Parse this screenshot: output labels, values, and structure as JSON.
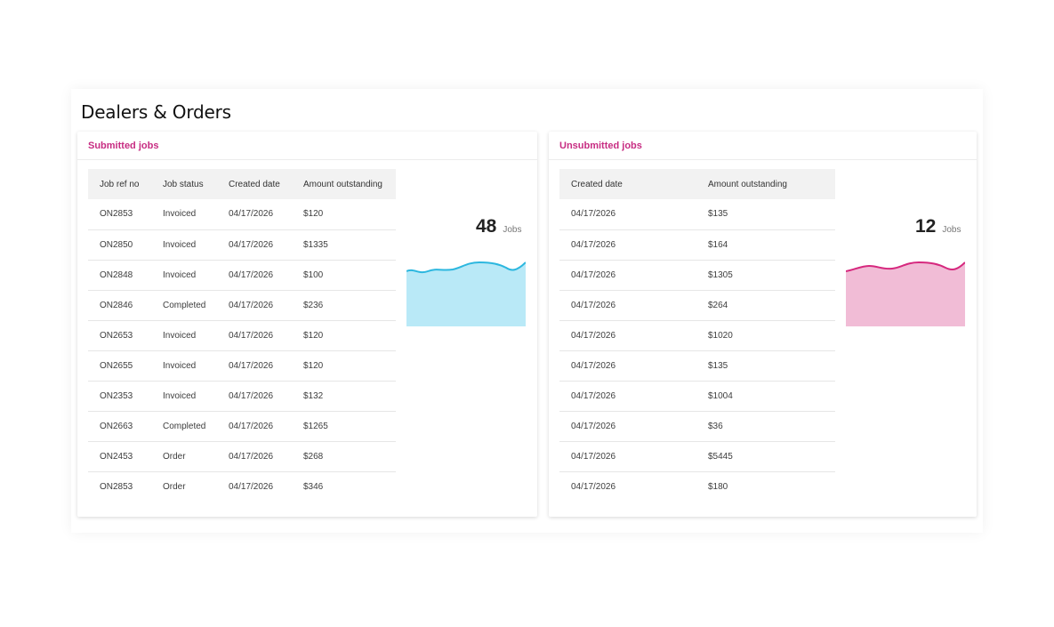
{
  "page": {
    "title": "Dealers & Orders"
  },
  "submitted": {
    "heading": "Submitted jobs",
    "columns": [
      "Job ref no",
      "Job status",
      "Created date",
      "Amount outstanding"
    ],
    "rows": [
      [
        "ON2853",
        "Invoiced",
        "04/17/2026",
        "$120"
      ],
      [
        "ON2850",
        "Invoiced",
        "04/17/2026",
        "$1335"
      ],
      [
        "ON2848",
        "Invoiced",
        "04/17/2026",
        "$100"
      ],
      [
        "ON2846",
        "Completed",
        "04/17/2026",
        "$236"
      ],
      [
        "ON2653",
        "Invoiced",
        "04/17/2026",
        "$120"
      ],
      [
        "ON2655",
        "Invoiced",
        "04/17/2026",
        "$120"
      ],
      [
        "ON2353",
        "Invoiced",
        "04/17/2026",
        "$132"
      ],
      [
        "ON2663",
        "Completed",
        "04/17/2026",
        "$1265"
      ],
      [
        "ON2453",
        "Order",
        "04/17/2026",
        "$268"
      ],
      [
        "ON2853",
        "Order",
        "04/17/2026",
        "$346"
      ]
    ],
    "count": "48",
    "count_unit": "Jobs",
    "color_line": "#2cb7df",
    "color_fill": "#b9e9f7"
  },
  "unsubmitted": {
    "heading": "Unsubmitted jobs",
    "columns": [
      "Created date",
      "Amount outstanding"
    ],
    "rows": [
      [
        "04/17/2026",
        "$135"
      ],
      [
        "04/17/2026",
        "$164"
      ],
      [
        "04/17/2026",
        "$1305"
      ],
      [
        "04/17/2026",
        "$264"
      ],
      [
        "04/17/2026",
        "$1020"
      ],
      [
        "04/17/2026",
        "$135"
      ],
      [
        "04/17/2026",
        "$1004"
      ],
      [
        "04/17/2026",
        "$36"
      ],
      [
        "04/17/2026",
        "$5445"
      ],
      [
        "04/17/2026",
        "$180"
      ]
    ],
    "count": "12",
    "count_unit": "Jobs",
    "color_line": "#d6287e",
    "color_fill": "#f1bcd6"
  }
}
